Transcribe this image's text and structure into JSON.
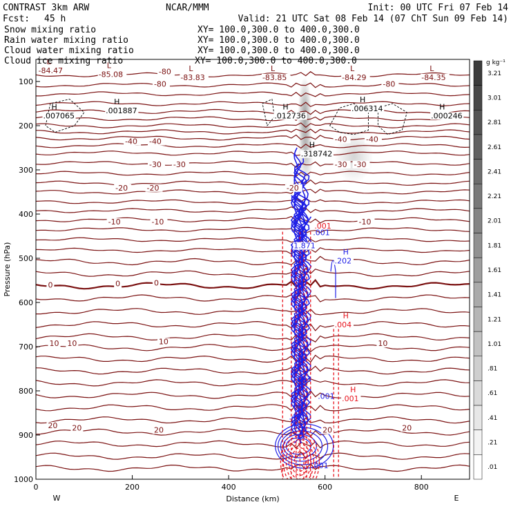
{
  "header": {
    "model": "CONTRAST  3km ARW",
    "org": "NCAR/MMM",
    "init": "Init: 00 UTC Fri 07 Feb 14",
    "fcst_label": "Fcst:",
    "fcst_value": "45 h",
    "valid": "Valid: 21 UTC Sat 08 Feb 14 (07 ChT Sun 09 Feb 14)"
  },
  "fields": [
    {
      "name": "Snow mixing ratio",
      "xsect": "XY= 100.0,300.0 to 400.0,300.0",
      "color": "#000000"
    },
    {
      "name": "Rain water mixing ratio",
      "xsect": "XY= 100.0,300.0 to 400.0,300.0",
      "color": "#e8141e"
    },
    {
      "name": "Cloud water mixing ratio",
      "xsect": "XY= 100.0,300.0 to 400.0,300.0",
      "color": "#1e1ee6"
    },
    {
      "name": "Cloud ice mixing ratio",
      "xsect": "XY= 100.0,300.0 to 400.0,300.0",
      "color": "#000000"
    }
  ],
  "colors": {
    "temperature": "#7a1010",
    "rain": "#e8141e",
    "cloud": "#1e1ee6",
    "text": "#000000"
  },
  "chart_data": {
    "type": "cross-section contour",
    "xlabel": "Distance (km)",
    "ylabel": "Pressure (hPa)",
    "xlim": [
      0,
      900
    ],
    "ylim": [
      1000,
      50
    ],
    "x_ticks": [
      0,
      200,
      400,
      600,
      800
    ],
    "y_ticks": [
      100,
      200,
      300,
      400,
      500,
      600,
      700,
      800,
      900,
      1000
    ],
    "west_label": "W",
    "east_label": "E",
    "colorbar": {
      "unit": "g kg⁻¹",
      "levels": [
        "3.21",
        "3.01",
        "2.81",
        "2.61",
        "2.41",
        "2.21",
        "2.01",
        "1.81",
        "1.61",
        "1.41",
        "1.21",
        "1.01",
        ".81",
        ".61",
        ".41",
        ".21",
        ".01"
      ]
    },
    "temperature_labels": [
      {
        "text": "-80",
        "x": 255,
        "p": 82
      },
      {
        "text": "-80",
        "x": 245,
        "p": 110
      },
      {
        "text": "-80",
        "x": 720,
        "p": 110
      },
      {
        "text": "-40",
        "x": 185,
        "p": 240
      },
      {
        "text": "-40",
        "x": 235,
        "p": 240
      },
      {
        "text": "-40",
        "x": 620,
        "p": 235
      },
      {
        "text": "-40",
        "x": 685,
        "p": 235
      },
      {
        "text": "-30",
        "x": 235,
        "p": 292
      },
      {
        "text": "-30",
        "x": 285,
        "p": 292
      },
      {
        "text": "-30",
        "x": 620,
        "p": 292
      },
      {
        "text": "-30",
        "x": 660,
        "p": 292
      },
      {
        "text": "-20",
        "x": 165,
        "p": 345
      },
      {
        "text": "-20",
        "x": 230,
        "p": 345
      },
      {
        "text": "-20",
        "x": 520,
        "p": 345
      },
      {
        "text": "-10",
        "x": 150,
        "p": 422
      },
      {
        "text": "-10",
        "x": 240,
        "p": 422
      },
      {
        "text": "-10",
        "x": 670,
        "p": 422
      },
      {
        "text": "0",
        "x": 25,
        "p": 565
      },
      {
        "text": "0",
        "x": 165,
        "p": 562
      },
      {
        "text": "0",
        "x": 245,
        "p": 560
      },
      {
        "text": "10",
        "x": 28,
        "p": 697
      },
      {
        "text": "10",
        "x": 65,
        "p": 697
      },
      {
        "text": "10",
        "x": 255,
        "p": 693
      },
      {
        "text": "10",
        "x": 710,
        "p": 697
      },
      {
        "text": "20",
        "x": 25,
        "p": 883
      },
      {
        "text": "20",
        "x": 75,
        "p": 888
      },
      {
        "text": "20",
        "x": 245,
        "p": 893
      },
      {
        "text": "20",
        "x": 595,
        "p": 893
      },
      {
        "text": "20",
        "x": 760,
        "p": 888
      }
    ],
    "extrema": [
      {
        "kind": "L",
        "value": "-84.47",
        "x": 5,
        "p": 80,
        "color": "temperature"
      },
      {
        "kind": "L",
        "value": "-85.08",
        "x": 130,
        "p": 88,
        "color": "temperature"
      },
      {
        "kind": "L",
        "value": "-83.83",
        "x": 300,
        "p": 95,
        "color": "temperature"
      },
      {
        "kind": "L",
        "value": "-83.85",
        "x": 470,
        "p": 95,
        "color": "temperature"
      },
      {
        "kind": "L",
        "value": "-84.29",
        "x": 635,
        "p": 95,
        "color": "temperature"
      },
      {
        "kind": "L",
        "value": "-84.35",
        "x": 800,
        "p": 95,
        "color": "temperature"
      },
      {
        "kind": "H",
        "value": ".007065",
        "x": 15,
        "p": 182,
        "color": "text"
      },
      {
        "kind": "H",
        "value": ".001887",
        "x": 145,
        "p": 170,
        "color": "text"
      },
      {
        "kind": "H",
        "value": ".012736",
        "x": 495,
        "p": 182,
        "color": "text"
      },
      {
        "kind": "H",
        "value": ".006314",
        "x": 655,
        "p": 166,
        "color": "text"
      },
      {
        "kind": "H",
        "value": ".000246",
        "x": 820,
        "p": 182,
        "color": "text"
      },
      {
        "kind": "H",
        "value": ".318742",
        "x": 550,
        "p": 268,
        "color": "text"
      },
      {
        "kind": "H",
        "value": "1.871",
        "x": 535,
        "p": 476,
        "color": "cloud"
      },
      {
        "kind": "H",
        "value": ".202",
        "x": 620,
        "p": 510,
        "color": "cloud"
      },
      {
        "kind": "H",
        "value": ".004",
        "x": 620,
        "p": 655,
        "color": "rain"
      },
      {
        "kind": "H",
        "value": ".001",
        "x": 635,
        "p": 822,
        "color": "rain"
      }
    ],
    "small_labels": [
      {
        "text": ".001",
        "x": 578,
        "p": 433,
        "color": "rain"
      },
      {
        "text": ".001",
        "x": 575,
        "p": 448,
        "color": "cloud"
      },
      {
        "text": ".003",
        "x": 537,
        "p": 780,
        "color": "cloud"
      },
      {
        "text": ".001",
        "x": 585,
        "p": 818,
        "color": "cloud"
      },
      {
        "text": ".401",
        "x": 525,
        "p": 865,
        "color": "cloud"
      },
      {
        "text": ".001",
        "x": 572,
        "p": 975,
        "color": "cloud"
      }
    ],
    "snow_shading": [
      {
        "x": 558,
        "p": 180,
        "rx": 10,
        "rp": 90,
        "max": 0.6
      },
      {
        "x": 560,
        "p": 260,
        "rx": 11,
        "rp": 70,
        "max": 0.4
      },
      {
        "x": 660,
        "p": 270,
        "rx": 28,
        "rp": 60,
        "max": 0.25
      }
    ]
  }
}
